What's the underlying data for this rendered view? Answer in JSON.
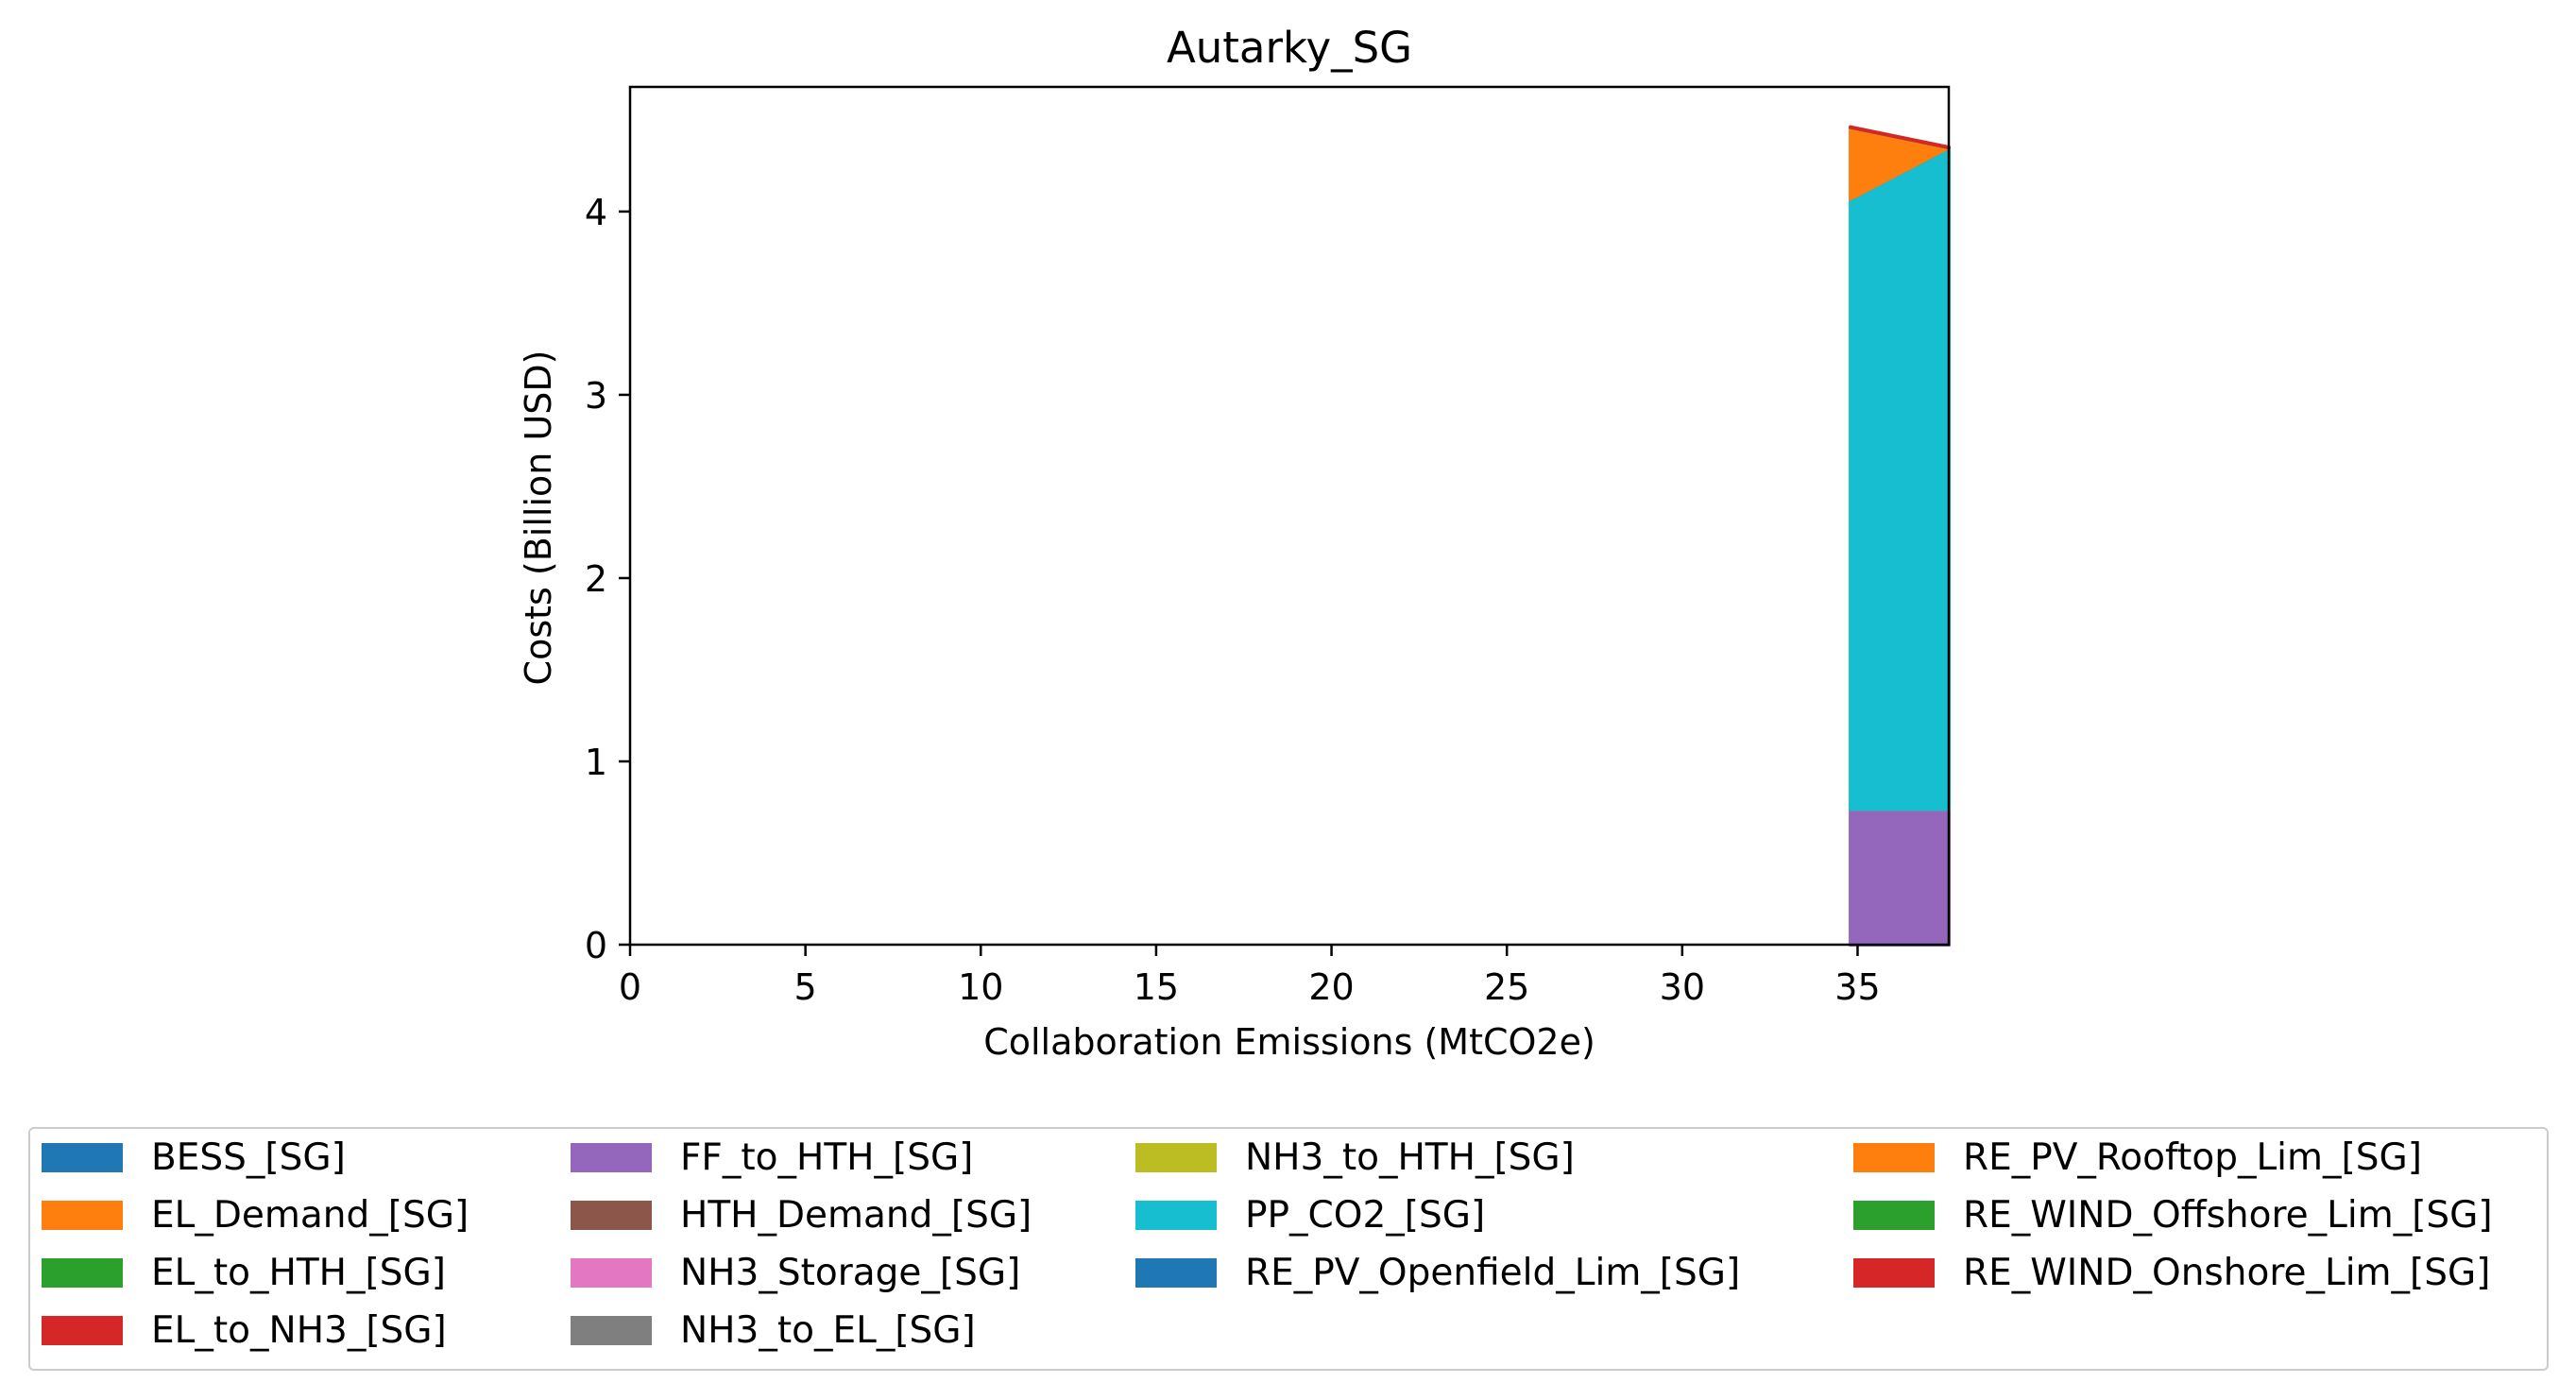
{
  "chart_data": {
    "type": "area",
    "title": "Autarky_SG",
    "xlabel": "Collaboration Emissions (MtCO2e)",
    "ylabel": "Costs (Billion USD)",
    "xlim": [
      0,
      37.6
    ],
    "ylim": [
      0,
      4.68
    ],
    "xticks": [
      "0",
      "5",
      "10",
      "15",
      "20",
      "25",
      "30",
      "35"
    ],
    "yticks": [
      "0",
      "1",
      "2",
      "3",
      "4"
    ],
    "x": [
      34.8,
      37.6
    ],
    "stacked": true,
    "legend_position": "below",
    "series": [
      {
        "name": "BESS_[SG]",
        "color": "#1f77b4",
        "values": [
          0,
          0
        ]
      },
      {
        "name": "EL_Demand_[SG]",
        "color": "#ff7f0e",
        "values": [
          0,
          0
        ]
      },
      {
        "name": "EL_to_HTH_[SG]",
        "color": "#2ca02c",
        "values": [
          0,
          0
        ]
      },
      {
        "name": "EL_to_NH3_[SG]",
        "color": "#d62728",
        "values": [
          0,
          0
        ]
      },
      {
        "name": "FF_to_HTH_[SG]",
        "color": "#9467bd",
        "values": [
          0.74,
          0.74
        ]
      },
      {
        "name": "HTH_Demand_[SG]",
        "color": "#8c564b",
        "values": [
          0,
          0
        ]
      },
      {
        "name": "NH3_Storage_[SG]",
        "color": "#e377c2",
        "values": [
          0,
          0
        ]
      },
      {
        "name": "NH3_to_EL_[SG]",
        "color": "#7f7f7f",
        "values": [
          0,
          0
        ]
      },
      {
        "name": "NH3_to_HTH_[SG]",
        "color": "#bcbd22",
        "values": [
          0,
          0
        ]
      },
      {
        "name": "PP_CO2_[SG]",
        "color": "#17becf",
        "values": [
          3.33,
          3.61
        ]
      },
      {
        "name": "RE_PV_Openfield_Lim_[SG]",
        "color": "#1f77b4",
        "values": [
          0,
          0
        ]
      },
      {
        "name": "RE_PV_Rooftop_Lim_[SG]",
        "color": "#ff7f0e",
        "values": [
          0.39,
          0
        ]
      },
      {
        "name": "RE_WIND_Offshore_Lim_[SG]",
        "color": "#2ca02c",
        "values": [
          0,
          0
        ]
      },
      {
        "name": "RE_WIND_Onshore_Lim_[SG]",
        "color": "#d62728",
        "values": [
          0,
          0
        ]
      }
    ]
  }
}
